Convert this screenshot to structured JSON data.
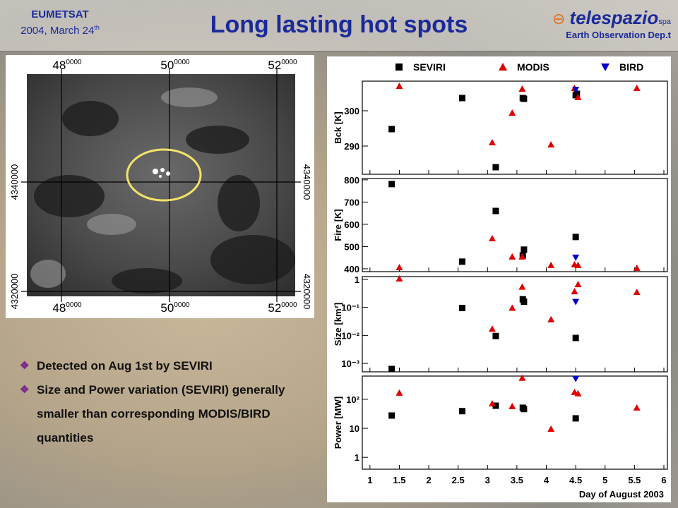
{
  "header": {
    "org": "EUMETSAT",
    "date": "2004, March 24",
    "date_sup": "th",
    "title": "Long lasting hot spots",
    "brand": "telespazio",
    "brand_sup": "spa",
    "department": "Earth Observation Dep.t"
  },
  "map": {
    "top_labels": [
      {
        "main": "48",
        "sup": "0000"
      },
      {
        "main": "50",
        "sup": "0000"
      },
      {
        "main": "52",
        "sup": "0000"
      }
    ],
    "bottom_labels": [
      {
        "main": "48",
        "sup": "0000"
      },
      {
        "main": "50",
        "sup": "0000"
      },
      {
        "main": "52",
        "sup": "0000"
      }
    ],
    "left_labels": [
      "4340000",
      "4320000"
    ],
    "right_labels": [
      "4340000",
      "4320000"
    ]
  },
  "bullets": [
    "Detected on Aug 1st by SEVIRI",
    "Size and Power variation (SEVIRI) generally smaller than corresponding MODIS/BIRD quantities"
  ],
  "chart_data": [
    {
      "type": "scatter",
      "ylabel": "Bck [K]",
      "xlim": [
        0.87,
        6.06
      ],
      "ylim": [
        282,
        308.4
      ],
      "yticks": [
        290,
        300
      ],
      "series": [
        {
          "name": "SEVIRI",
          "color": "#000000",
          "marker": "square",
          "x": [
            1.37,
            2.57,
            3.14,
            3.6,
            3.62,
            4.5,
            4.52
          ],
          "values": [
            294.8,
            303.6,
            284,
            303.6,
            303.4,
            304.4,
            304.8
          ]
        },
        {
          "name": "MODIS",
          "color": "#e00000",
          "marker": "triangle-up",
          "x": [
            1.5,
            3.08,
            3.42,
            3.59,
            4.08,
            4.48,
            4.54,
            5.54
          ],
          "values": [
            307,
            291,
            299.4,
            306.2,
            290.4,
            306.4,
            303.8,
            306.4
          ]
        },
        {
          "name": "BIRD",
          "color": "#0000cc",
          "marker": "triangle-down",
          "x": [
            4.5
          ],
          "values": [
            306
          ]
        }
      ]
    },
    {
      "type": "scatter",
      "ylabel": "Fire [K]",
      "xlim": [
        0.87,
        6.06
      ],
      "ylim": [
        387,
        806
      ],
      "yticks": [
        400,
        500,
        600,
        700,
        800
      ],
      "series": [
        {
          "color": "#000000",
          "marker": "square",
          "x": [
            1.37,
            2.57,
            3.14,
            3.6,
            3.62,
            4.5
          ],
          "values": [
            781,
            432,
            660,
            460,
            486,
            543
          ]
        },
        {
          "color": "#e00000",
          "marker": "triangle-up",
          "x": [
            1.5,
            3.08,
            3.42,
            3.59,
            4.08,
            4.48,
            4.54,
            5.54
          ],
          "values": [
            406,
            536,
            454,
            454,
            416,
            419,
            416,
            403
          ]
        },
        {
          "color": "#0000cc",
          "marker": "triangle-down",
          "x": [
            4.5
          ],
          "values": [
            451
          ]
        }
      ]
    },
    {
      "type": "scatter",
      "ylabel": "Size [km²]",
      "log_y": true,
      "xlim": [
        0.87,
        6.06
      ],
      "ylim": [
        0.0005,
        1.26
      ],
      "yticks": [
        1,
        {
          "value": 0.1,
          "label": "10⁻¹"
        },
        {
          "value": 0.01,
          "label": "10⁻²"
        },
        {
          "value": 0.001,
          "label": "10⁻³"
        }
      ],
      "series": [
        {
          "color": "#000000",
          "marker": "square",
          "x": [
            1.37,
            2.57,
            3.14,
            3.6,
            3.62,
            4.5
          ],
          "values": [
            0.00063,
            0.095,
            0.0095,
            0.195,
            0.16,
            0.0081
          ]
        },
        {
          "color": "#e00000",
          "marker": "triangle-up",
          "x": [
            1.5,
            3.08,
            3.42,
            3.59,
            4.08,
            4.48,
            4.54,
            5.54
          ],
          "values": [
            1.06,
            0.017,
            0.095,
            0.54,
            0.037,
            0.37,
            0.66,
            0.35
          ]
        },
        {
          "color": "#0000cc",
          "marker": "triangle-down",
          "x": [
            4.5
          ],
          "values": [
            0.16
          ]
        }
      ]
    },
    {
      "type": "scatter",
      "ylabel": "Power [MW]",
      "xlabel": "Day of August 2003",
      "log_y": true,
      "xlim": [
        0.87,
        6.06
      ],
      "ylim": [
        0.39,
        630
      ],
      "yticks": [
        1,
        10,
        {
          "value": 100,
          "label": "10²"
        }
      ],
      "xticks": [
        1,
        1.5,
        2,
        2.5,
        3,
        3.5,
        4,
        4.5,
        5,
        5.5,
        6
      ],
      "series": [
        {
          "color": "#000000",
          "marker": "square",
          "x": [
            1.37,
            2.57,
            3.14,
            3.6,
            3.62,
            4.5
          ],
          "values": [
            27.5,
            39,
            60,
            51,
            46,
            22
          ]
        },
        {
          "color": "#e00000",
          "marker": "triangle-up",
          "x": [
            1.5,
            3.08,
            3.42,
            3.59,
            4.08,
            4.48,
            4.54,
            5.54
          ],
          "values": [
            166,
            71,
            57,
            540,
            9.5,
            175,
            158,
            51
          ]
        },
        {
          "color": "#0000cc",
          "marker": "triangle-down",
          "x": [
            4.5
          ],
          "values": [
            510
          ]
        }
      ]
    }
  ]
}
